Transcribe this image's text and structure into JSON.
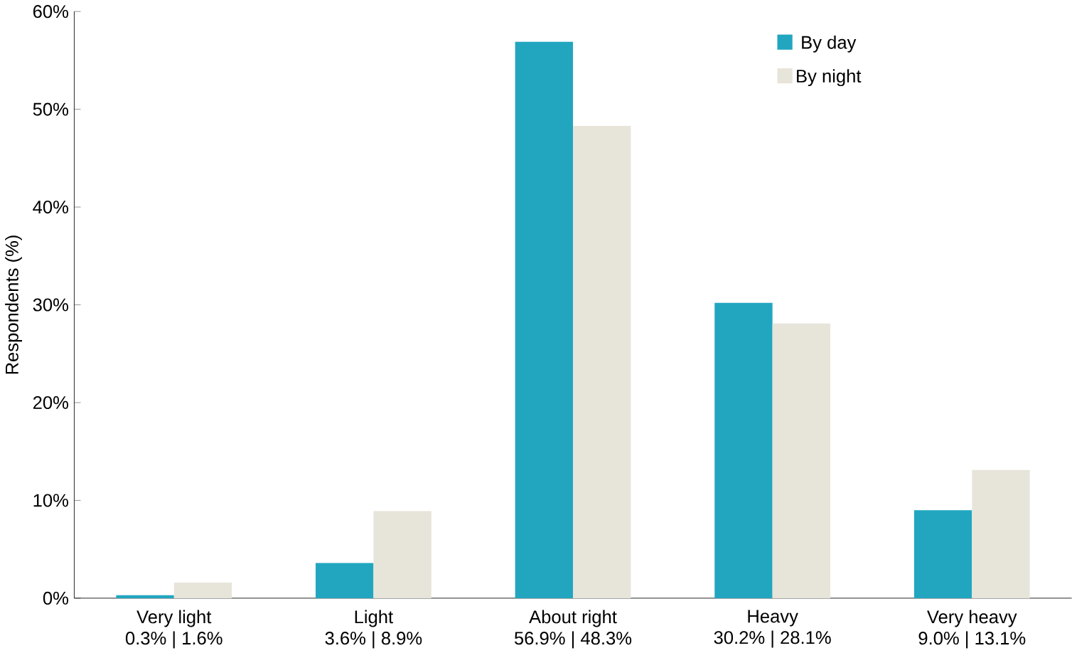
{
  "chart_data": {
    "type": "bar",
    "ylabel": "Respondents (%)",
    "categories": [
      "Very light",
      "Light",
      "About right",
      "Heavy",
      "Very heavy"
    ],
    "annotations": [
      "0.3% | 1.6%",
      "3.6% | 8.9%",
      "56.9% | 48.3%",
      "30.2% | 28.1%",
      "9.0% | 13.1%"
    ],
    "series": [
      {
        "name": "By day",
        "color": "#22a6c0",
        "values": [
          0.3,
          3.6,
          56.9,
          30.2,
          9.0
        ]
      },
      {
        "name": "By night",
        "color": "#e7e4da",
        "values": [
          1.6,
          8.9,
          48.3,
          28.1,
          13.1
        ]
      }
    ],
    "ylim": [
      0,
      60
    ],
    "yticks": [
      {
        "value": 0,
        "label": "0%"
      },
      {
        "value": 10,
        "label": "10%"
      },
      {
        "value": 20,
        "label": "20%"
      },
      {
        "value": 30,
        "label": "30%"
      },
      {
        "value": 40,
        "label": "40%"
      },
      {
        "value": 50,
        "label": "50%"
      },
      {
        "value": 60,
        "label": "60%"
      }
    ],
    "legend": "top right"
  }
}
